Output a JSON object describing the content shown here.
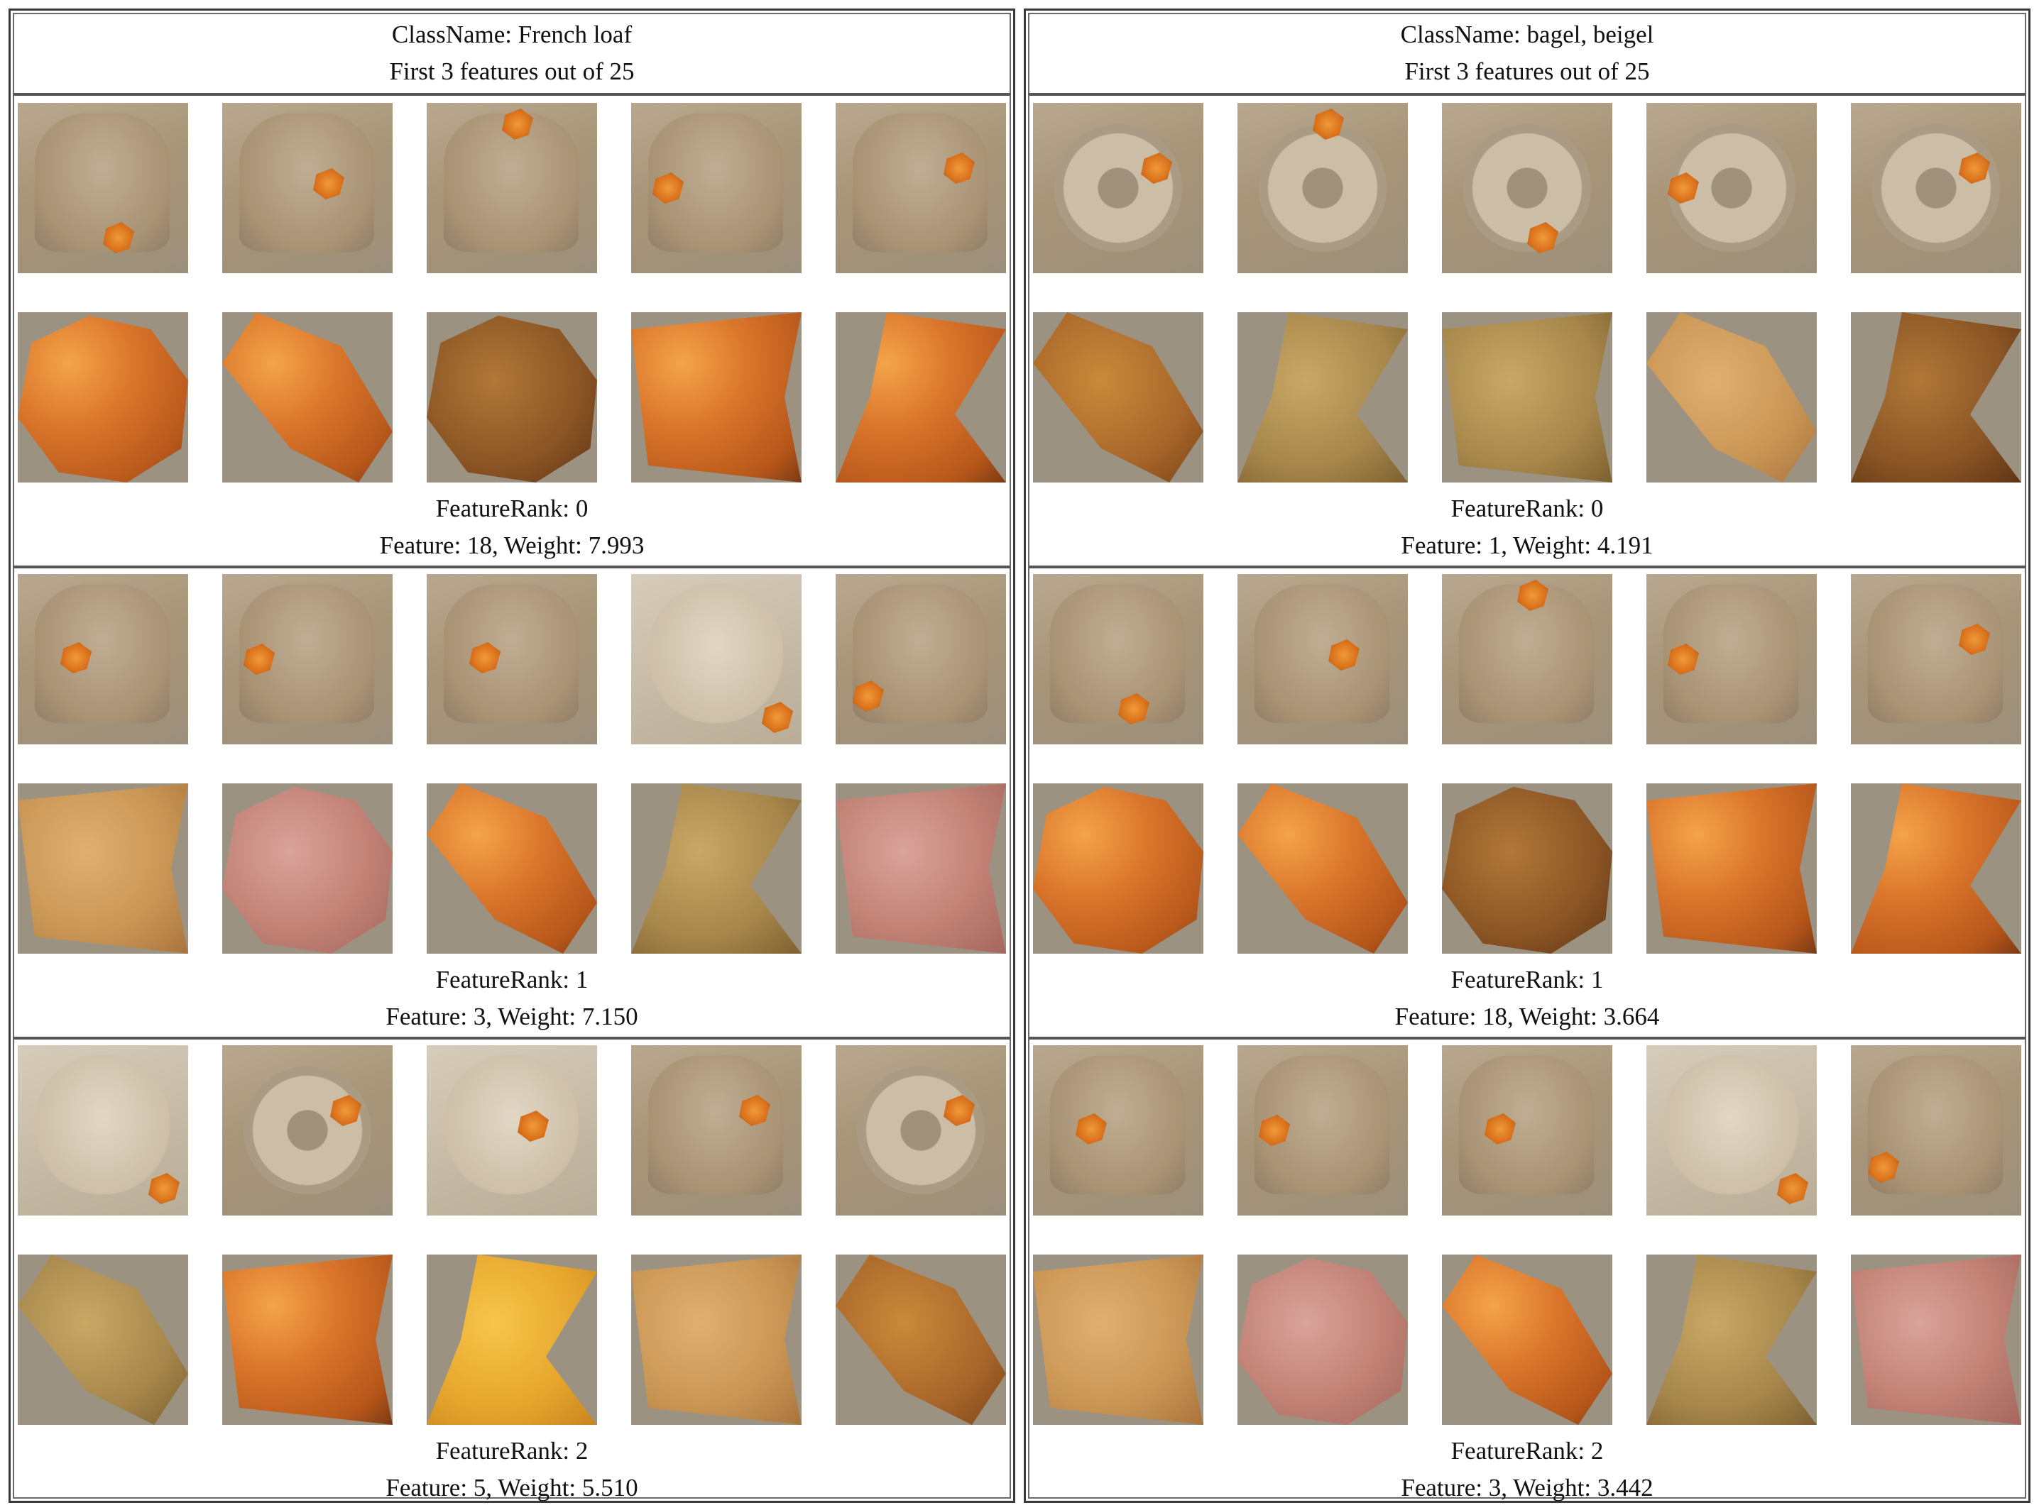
{
  "panels": [
    {
      "class_line": "ClassName: French loaf",
      "subtitle": "First 3 features out of 25",
      "features": [
        {
          "rank_line": "FeatureRank: 0",
          "detail_line": "Feature: 18, Weight: 7.993"
        },
        {
          "rank_line": "FeatureRank: 1",
          "detail_line": "Feature: 3, Weight: 7.150"
        },
        {
          "rank_line": "FeatureRank: 2",
          "detail_line": "Feature: 5, Weight: 5.510"
        }
      ]
    },
    {
      "class_line": "ClassName: bagel, beigel",
      "subtitle": "First 3 features out of 25",
      "features": [
        {
          "rank_line": "FeatureRank: 0",
          "detail_line": "Feature: 1, Weight: 4.191"
        },
        {
          "rank_line": "FeatureRank: 1",
          "detail_line": "Feature: 18, Weight: 3.664"
        },
        {
          "rank_line": "FeatureRank: 2",
          "detail_line": "Feature: 3, Weight: 3.442"
        }
      ]
    }
  ]
}
